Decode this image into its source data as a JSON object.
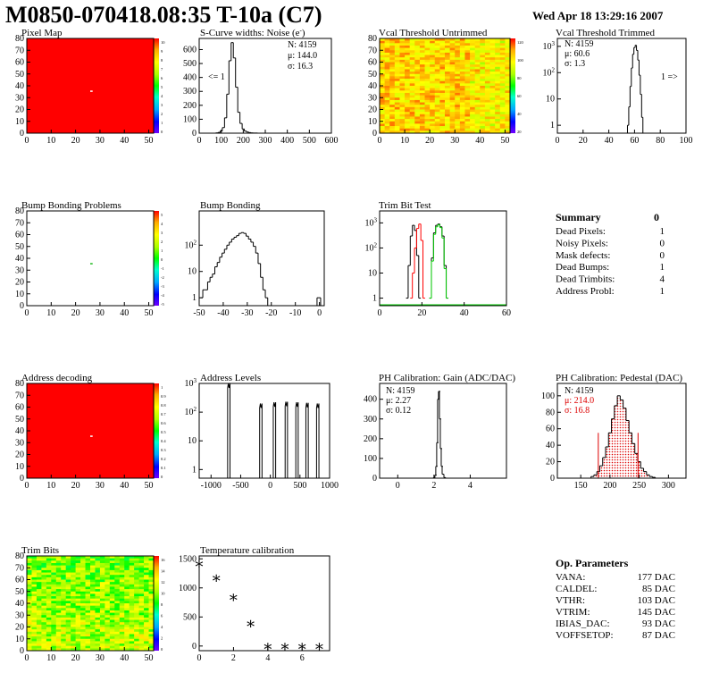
{
  "header": {
    "title": "M0850-070418.08:35 T-10a (C7)",
    "date": "Wed Apr 18 13:29:16 2007"
  },
  "colors": {
    "red": "#ff0000",
    "green": "#00cc00",
    "black": "#000000"
  },
  "panels": {
    "pixel_map": {
      "title": "Pixel Map",
      "z_ticks": [
        "10",
        "9",
        "8",
        "7",
        "6",
        "5",
        "4",
        "3",
        "2",
        "1",
        "0"
      ]
    },
    "scurve": {
      "title": "S-Curve widths: Noise (e-)",
      "stats": {
        "n": "N: 4159",
        "mean": "μ: 144.0",
        "sigma": "σ: 16.3"
      },
      "underflow": "<= 1"
    },
    "vcal_untrimmed": {
      "title": "Vcal Threshold Untrimmed",
      "z_ticks": [
        "120",
        "100",
        "80",
        "60",
        "40",
        "20"
      ]
    },
    "vcal_trimmed": {
      "title": "Vcal Threshold Trimmed",
      "stats": {
        "n": "N: 4159",
        "mean": "μ: 60.6",
        "sigma": "σ:  1.3"
      },
      "overflow": "1 =>"
    },
    "bump_problems": {
      "title": "Bump Bonding Problems",
      "z_ticks": [
        "5",
        "4",
        "3",
        "2",
        "1",
        "0",
        "-1",
        "-2",
        "-3",
        "-4",
        "-5"
      ]
    },
    "bump_bonding": {
      "title": "Bump Bonding"
    },
    "trim_bit_test": {
      "title": "Trim Bit Test"
    },
    "summary": {
      "title": "Summary",
      "value": "0",
      "rows": [
        {
          "label": "Dead Pixels:",
          "value": "1"
        },
        {
          "label": "Noisy Pixels:",
          "value": "0"
        },
        {
          "label": "Mask defects:",
          "value": "0"
        },
        {
          "label": "Dead Bumps:",
          "value": "1"
        },
        {
          "label": "Dead Trimbits:",
          "value": "4"
        },
        {
          "label": "Address Probl:",
          "value": "1"
        }
      ]
    },
    "address_decoding": {
      "title": "Address decoding",
      "z_ticks": [
        "1",
        "0.9",
        "0.8",
        "0.7",
        "0.6",
        "0.5",
        "0.4",
        "0.3",
        "0.2",
        "0.1",
        "0"
      ]
    },
    "address_levels": {
      "title": "Address Levels"
    },
    "ph_gain": {
      "title": "PH Calibration: Gain (ADC/DAC)",
      "stats": {
        "n": "N: 4159",
        "mean": "μ: 2.27",
        "sigma": "σ: 0.12"
      }
    },
    "ph_pedestal": {
      "title": "PH Calibration: Pedestal (DAC)",
      "stats": {
        "n": "N: 4159",
        "mean": "μ: 214.0",
        "sigma": "σ: 16.8"
      }
    },
    "trim_bits": {
      "title": "Trim Bits",
      "z_ticks": [
        "16",
        "14",
        "12",
        "10",
        "8",
        "6",
        "4",
        "2",
        "0"
      ]
    },
    "temperature": {
      "title": "Temperature calibration"
    },
    "op_params": {
      "title": "Op. Parameters",
      "rows": [
        {
          "label": "VANA:",
          "value": "177 DAC"
        },
        {
          "label": "CALDEL:",
          "value": "85 DAC"
        },
        {
          "label": "VTHR:",
          "value": "103 DAC"
        },
        {
          "label": "VTRIM:",
          "value": "145 DAC"
        },
        {
          "label": "IBIAS_DAC:",
          "value": "93 DAC"
        },
        {
          "label": "VOFFSETOP:",
          "value": "87 DAC"
        }
      ]
    }
  },
  "chart_data": [
    {
      "id": "pixel_map",
      "type": "heatmap",
      "title": "Pixel Map",
      "xlim": [
        0,
        52
      ],
      "ylim": [
        0,
        80
      ],
      "x_ticks": [
        0,
        10,
        20,
        30,
        40,
        50
      ],
      "y_ticks": [
        0,
        10,
        20,
        30,
        40,
        50,
        60,
        70,
        80
      ],
      "zlim": [
        0,
        10
      ],
      "fill_value": 10,
      "special_cells": [
        {
          "x": 26,
          "y": 35,
          "value": 0
        }
      ]
    },
    {
      "id": "scurve",
      "type": "line",
      "title": "S-Curve widths: Noise (e-)",
      "xlim": [
        0,
        600
      ],
      "ylim": [
        0,
        680
      ],
      "x_ticks": [
        0,
        100,
        200,
        300,
        400,
        500,
        600
      ],
      "y_ticks": [
        0,
        100,
        200,
        300,
        400,
        500,
        600
      ],
      "x": [
        70,
        80,
        90,
        100,
        110,
        120,
        130,
        140,
        150,
        160,
        170,
        180,
        190,
        200,
        210,
        220,
        230,
        240,
        250,
        260,
        270,
        280
      ],
      "y": [
        0,
        2,
        5,
        15,
        40,
        110,
        280,
        520,
        650,
        540,
        330,
        150,
        70,
        30,
        15,
        8,
        4,
        2,
        1,
        1,
        0,
        0
      ]
    },
    {
      "id": "vcal_untrimmed",
      "type": "heatmap",
      "title": "Vcal Threshold Untrimmed",
      "xlim": [
        0,
        52
      ],
      "ylim": [
        0,
        80
      ],
      "x_ticks": [
        0,
        10,
        20,
        30,
        40,
        50
      ],
      "y_ticks": [
        0,
        10,
        20,
        30,
        40,
        50,
        60,
        70,
        80
      ],
      "zlim": [
        0,
        130
      ]
    },
    {
      "id": "vcal_trimmed",
      "type": "line",
      "title": "Vcal Threshold Trimmed",
      "log_y": true,
      "xlim": [
        0,
        100
      ],
      "ylim": [
        0.5,
        2000
      ],
      "x_ticks": [
        0,
        20,
        40,
        60,
        80,
        100
      ],
      "y_ticks": [
        1,
        10,
        100,
        1000
      ],
      "x": [
        54,
        55,
        56,
        57,
        58,
        59,
        60,
        61,
        62,
        63,
        64,
        65,
        66,
        67
      ],
      "y": [
        0,
        1,
        5,
        30,
        150,
        500,
        900,
        1100,
        700,
        300,
        80,
        15,
        2,
        0
      ]
    },
    {
      "id": "bump_problems",
      "type": "heatmap",
      "title": "Bump Bonding Problems",
      "xlim": [
        0,
        52
      ],
      "ylim": [
        0,
        80
      ],
      "x_ticks": [
        0,
        10,
        20,
        30,
        40,
        50
      ],
      "y_ticks": [
        0,
        10,
        20,
        30,
        40,
        50,
        60,
        70,
        80
      ],
      "zlim": [
        -5,
        5
      ],
      "fill_value": 0,
      "special_cells": [
        {
          "x": 26,
          "y": 35,
          "value": 1
        }
      ]
    },
    {
      "id": "bump_bonding",
      "type": "line",
      "title": "Bump Bonding",
      "log_y": true,
      "xlim": [
        -50,
        2
      ],
      "ylim": [
        0.5,
        2000
      ],
      "x_ticks": [
        -50,
        -40,
        -30,
        -20,
        -10,
        0
      ],
      "y_ticks": [
        1,
        10,
        100
      ],
      "x": [
        -49,
        -48,
        -47,
        -46,
        -45,
        -44,
        -43,
        -42,
        -41,
        -40,
        -39,
        -38,
        -37,
        -36,
        -35,
        -34,
        -33,
        -32,
        -31,
        -30,
        -29,
        -28,
        -27,
        -26,
        -25,
        -24,
        -23,
        -22,
        -21,
        -20
      ],
      "y": [
        1,
        2,
        2,
        4,
        6,
        8,
        15,
        22,
        35,
        50,
        70,
        100,
        130,
        170,
        200,
        230,
        280,
        300,
        280,
        220,
        170,
        130,
        90,
        50,
        20,
        6,
        2,
        1,
        0,
        0
      ],
      "outlier": {
        "x": 0,
        "y": 1
      }
    },
    {
      "id": "trim_bit_test",
      "type": "line",
      "title": "Trim Bit Test",
      "log_y": true,
      "xlim": [
        0,
        60
      ],
      "ylim": [
        0.5,
        3000
      ],
      "x_ticks": [
        0,
        20,
        40,
        60
      ],
      "y_ticks": [
        1,
        10,
        100,
        1000
      ],
      "series": [
        {
          "color": "#000000",
          "x": [
            13,
            14,
            15,
            16,
            17,
            18,
            19
          ],
          "y": [
            1,
            20,
            300,
            800,
            500,
            50,
            1
          ]
        },
        {
          "color": "#ff0000",
          "x": [
            15,
            16,
            17,
            18,
            19,
            20,
            21
          ],
          "y": [
            1,
            10,
            100,
            600,
            900,
            200,
            1
          ]
        },
        {
          "color": "#000000",
          "x": [
            24,
            25,
            26,
            27,
            28,
            29,
            30,
            31,
            32
          ],
          "y": [
            1,
            40,
            400,
            800,
            900,
            700,
            300,
            20,
            1
          ]
        },
        {
          "color": "#00cc00",
          "x": [
            24,
            25,
            26,
            27,
            28,
            29,
            30,
            31,
            32
          ],
          "y": [
            1,
            30,
            350,
            700,
            850,
            650,
            250,
            15,
            1
          ]
        }
      ]
    },
    {
      "id": "address_decoding",
      "type": "heatmap",
      "title": "Address decoding",
      "xlim": [
        0,
        52
      ],
      "ylim": [
        0,
        80
      ],
      "x_ticks": [
        0,
        10,
        20,
        30,
        40,
        50
      ],
      "y_ticks": [
        0,
        10,
        20,
        30,
        40,
        50,
        60,
        70,
        80
      ],
      "zlim": [
        0,
        1
      ],
      "fill_value": 1,
      "special_cells": [
        {
          "x": 26,
          "y": 35,
          "value": 0
        }
      ]
    },
    {
      "id": "address_levels",
      "type": "line",
      "title": "Address Levels",
      "log_y": true,
      "xlim": [
        -1200,
        1000
      ],
      "ylim": [
        0.5,
        1000
      ],
      "x_ticks": [
        -1000,
        -500,
        0,
        500,
        1000
      ],
      "y_ticks": [
        1,
        10,
        100,
        1000
      ],
      "peaks": [
        {
          "center": -700,
          "height": 1000
        },
        {
          "center": -160,
          "height": 200
        },
        {
          "center": 70,
          "height": 220
        },
        {
          "center": 270,
          "height": 230
        },
        {
          "center": 450,
          "height": 220
        },
        {
          "center": 620,
          "height": 210
        },
        {
          "center": 800,
          "height": 200
        }
      ]
    },
    {
      "id": "ph_gain",
      "type": "line",
      "title": "PH Calibration: Gain (ADC/DAC)",
      "xlim": [
        -1,
        6
      ],
      "ylim": [
        0,
        480
      ],
      "x_ticks": [
        0,
        2,
        4
      ],
      "y_ticks": [
        0,
        100,
        200,
        300,
        400
      ],
      "x": [
        1.9,
        2.0,
        2.1,
        2.15,
        2.2,
        2.25,
        2.3,
        2.35,
        2.4,
        2.45,
        2.5,
        2.6,
        2.7
      ],
      "y": [
        0,
        2,
        15,
        60,
        180,
        400,
        440,
        300,
        150,
        60,
        20,
        3,
        0
      ]
    },
    {
      "id": "ph_pedestal",
      "type": "line",
      "title": "PH Calibration: Pedestal (DAC)",
      "xlim": [
        110,
        330
      ],
      "ylim": [
        0,
        115
      ],
      "x_ticks": [
        150,
        200,
        250,
        300
      ],
      "y_ticks": [
        0,
        20,
        40,
        60,
        80,
        100
      ],
      "x": [
        165,
        170,
        175,
        180,
        185,
        190,
        195,
        200,
        205,
        210,
        215,
        220,
        225,
        230,
        235,
        240,
        245,
        250,
        255,
        260,
        265,
        270,
        275,
        280
      ],
      "y": [
        0,
        2,
        4,
        8,
        15,
        25,
        38,
        55,
        72,
        88,
        100,
        95,
        85,
        70,
        55,
        42,
        30,
        20,
        12,
        8,
        4,
        2,
        1,
        0
      ],
      "fit_range": [
        180,
        248
      ]
    },
    {
      "id": "trim_bits",
      "type": "heatmap",
      "title": "Trim Bits",
      "xlim": [
        0,
        52
      ],
      "ylim": [
        0,
        80
      ],
      "x_ticks": [
        0,
        10,
        20,
        30,
        40,
        50
      ],
      "y_ticks": [
        0,
        10,
        20,
        30,
        40,
        50,
        60,
        70,
        80
      ],
      "zlim": [
        0,
        16
      ]
    },
    {
      "id": "temperature",
      "type": "scatter",
      "title": "Temperature calibration",
      "xlim": [
        0,
        7.6
      ],
      "ylim": [
        -80,
        1550
      ],
      "x_ticks": [
        0,
        2,
        4,
        6
      ],
      "y_ticks": [
        0,
        500,
        1000,
        1500
      ],
      "x": [
        0,
        1,
        2,
        3,
        4,
        5,
        6,
        7
      ],
      "y": [
        1420,
        1170,
        840,
        390,
        0,
        0,
        0,
        0
      ]
    }
  ]
}
